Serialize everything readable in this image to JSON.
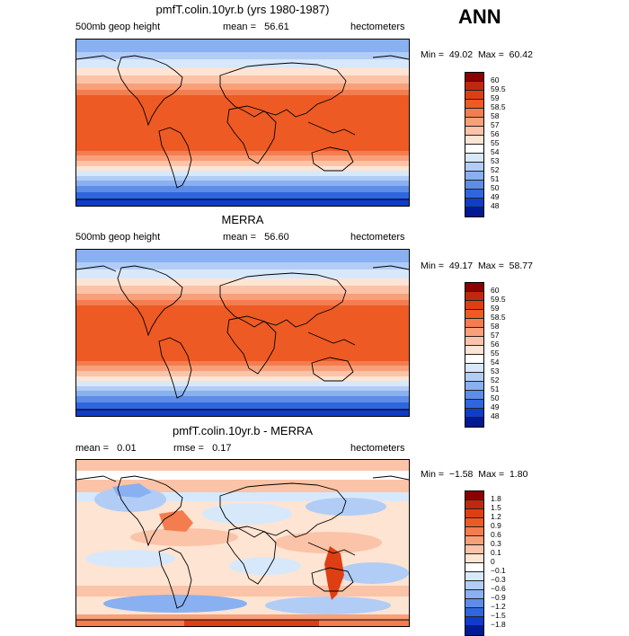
{
  "season": "ANN",
  "panels": [
    {
      "title": "pmfT.colin.10yr.b (yrs 1980-1987)",
      "field": "500mb geop height",
      "stat1_label": "mean =",
      "stat1_value": "56.61",
      "stat2_label": "",
      "stat2_value": "",
      "units": "hectometers",
      "min_label": "Min =",
      "min_value": "49.02",
      "max_label": "Max =",
      "max_value": "60.42",
      "levels": [
        "60",
        "59.5",
        "59",
        "58.5",
        "58",
        "57",
        "56",
        "55",
        "54",
        "53",
        "52",
        "51",
        "50",
        "49",
        "48"
      ],
      "colors": [
        "#8b0000",
        "#c1270f",
        "#de3f12",
        "#ee5a24",
        "#f47d4f",
        "#f8a07a",
        "#fbc3a8",
        "#fee4d2",
        "#ffffff",
        "#d8e8fb",
        "#b1cdf6",
        "#89b0f0",
        "#5d8de8",
        "#2f66de",
        "#0f3dc9",
        "#001a93"
      ]
    },
    {
      "title": "MERRA",
      "field": "500mb geop height",
      "stat1_label": "mean =",
      "stat1_value": "56.60",
      "stat2_label": "",
      "stat2_value": "",
      "units": "hectometers",
      "min_label": "Min =",
      "min_value": "49.17",
      "max_label": "Max =",
      "max_value": "58.77",
      "levels": [
        "60",
        "59.5",
        "59",
        "58.5",
        "58",
        "57",
        "56",
        "55",
        "54",
        "53",
        "52",
        "51",
        "50",
        "49",
        "48"
      ],
      "colors": [
        "#8b0000",
        "#c1270f",
        "#de3f12",
        "#ee5a24",
        "#f47d4f",
        "#f8a07a",
        "#fbc3a8",
        "#fee4d2",
        "#ffffff",
        "#d8e8fb",
        "#b1cdf6",
        "#89b0f0",
        "#5d8de8",
        "#2f66de",
        "#0f3dc9",
        "#001a93"
      ]
    },
    {
      "title": "pmfT.colin.10yr.b - MERRA",
      "field": "",
      "stat1_label": "mean =",
      "stat1_value": "0.01",
      "stat2_label": "rmse =",
      "stat2_value": "0.17",
      "units": "hectometers",
      "min_label": "Min =",
      "min_value": "−1.58",
      "max_label": "Max =",
      "max_value": "1.80",
      "levels": [
        "1.8",
        "1.5",
        "1.2",
        "0.9",
        "0.6",
        "0.3",
        "0.1",
        "0",
        "−0.1",
        "−0.3",
        "−0.6",
        "−0.9",
        "−1.2",
        "−1.5",
        "−1.8"
      ],
      "colors": [
        "#8b0000",
        "#c1270f",
        "#de3f12",
        "#ee5a24",
        "#f47d4f",
        "#f8a07a",
        "#fbc3a8",
        "#fee4d2",
        "#ffffff",
        "#d8e8fb",
        "#b1cdf6",
        "#89b0f0",
        "#5d8de8",
        "#2f66de",
        "#0f3dc9",
        "#001a93"
      ]
    }
  ]
}
